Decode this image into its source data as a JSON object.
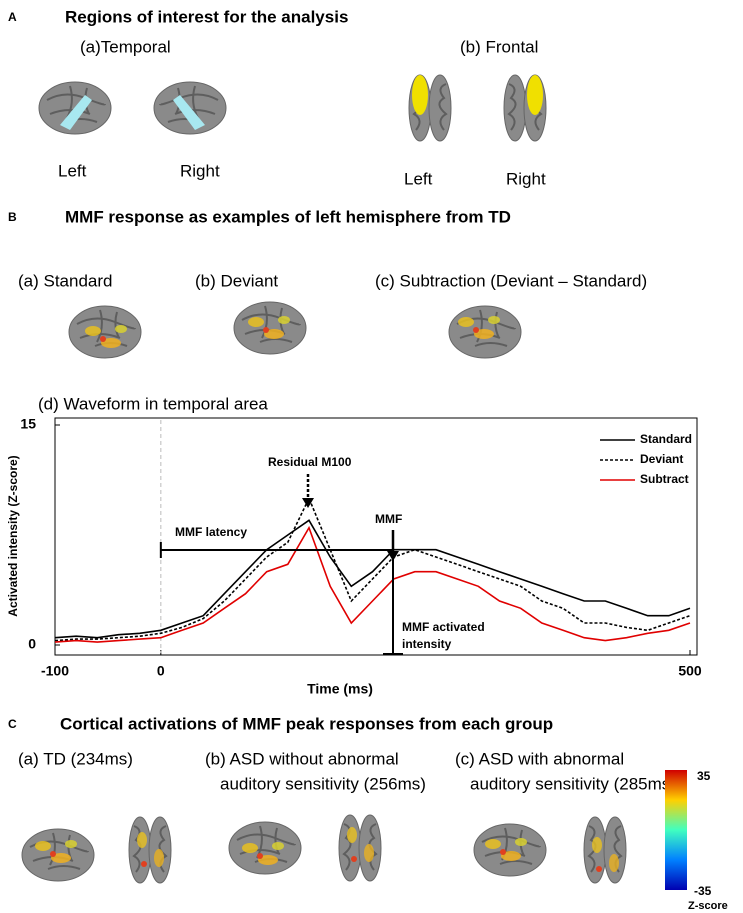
{
  "panel_a": {
    "letter": "A",
    "title": "Regions of interest for the analysis",
    "temporal": {
      "title": "(a)Temporal",
      "left": "Left",
      "right": "Right"
    },
    "frontal": {
      "title": "(b) Frontal",
      "left": "Left",
      "right": "Right"
    }
  },
  "panel_b": {
    "letter": "B",
    "title": "MMF response as examples of left hemisphere from TD",
    "subtitles": [
      "(a) Standard",
      "(b) Deviant",
      "(c) Subtraction (Deviant – Standard)"
    ],
    "waveform_title": "(d) Waveform in temporal area"
  },
  "chart_data": {
    "type": "line",
    "xlabel": "Time (ms)",
    "ylabel": "Activated intensity (Z-score)",
    "x": [
      -100,
      -80,
      -60,
      -40,
      -20,
      0,
      20,
      40,
      60,
      80,
      100,
      120,
      140,
      160,
      180,
      200,
      220,
      240,
      260,
      280,
      300,
      320,
      340,
      360,
      380,
      400,
      420,
      440,
      460,
      480,
      500
    ],
    "series": [
      {
        "name": "Standard",
        "color": "#000000",
        "style": "solid",
        "values": [
          0.5,
          0.6,
          0.5,
          0.7,
          0.8,
          1,
          1.5,
          2,
          3.5,
          5,
          6.5,
          7.5,
          8.5,
          6,
          4,
          5,
          6.5,
          6.5,
          6.5,
          6,
          5.5,
          5,
          4.5,
          4,
          3.5,
          3,
          3,
          2.5,
          2,
          2,
          2.5
        ]
      },
      {
        "name": "Deviant",
        "color": "#000000",
        "style": "dashed",
        "values": [
          0.3,
          0.4,
          0.4,
          0.5,
          0.6,
          0.8,
          1.2,
          1.8,
          3,
          4.5,
          6,
          7,
          10,
          6.5,
          3,
          4.5,
          6,
          6.5,
          6,
          5.5,
          5,
          4.5,
          4,
          3,
          2.5,
          1.5,
          1.5,
          1.2,
          1,
          1.5,
          2
        ]
      },
      {
        "name": "Subtract",
        "color": "#e00000",
        "style": "solid",
        "values": [
          0.2,
          0.3,
          0.2,
          0.3,
          0.4,
          0.5,
          1,
          1.5,
          2.5,
          3.5,
          5,
          5.5,
          8,
          4,
          1.5,
          3,
          4.5,
          5,
          5,
          4.5,
          4,
          3,
          2.5,
          1.5,
          1,
          0.5,
          0.3,
          0.5,
          0.8,
          1,
          1.5
        ]
      }
    ],
    "xlim": [
      -100,
      500
    ],
    "ylim": [
      0,
      15
    ],
    "xticks": [
      -100,
      0,
      500
    ],
    "yticks": [
      0,
      15
    ],
    "annotations": {
      "residual": "Residual M100",
      "mmf": "MMF",
      "latency": "MMF latency",
      "intensity": [
        "MMF activated",
        "intensity"
      ]
    },
    "legend": "upper right"
  },
  "panel_c": {
    "letter": "C",
    "title": "Cortical activations of MMF peak responses from each group",
    "groups": [
      [
        "(a) TD (234ms)"
      ],
      [
        "(b) ASD without abnormal",
        "auditory sensitivity (256ms)"
      ],
      [
        "(c) ASD with abnormal",
        "auditory sensitivity (285ms)"
      ]
    ],
    "colorbar": {
      "ticks": [
        35,
        -35
      ],
      "label": "Z-score"
    }
  }
}
